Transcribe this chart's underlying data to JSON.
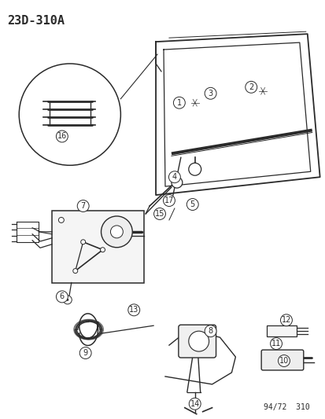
{
  "title": "23D-310A",
  "footer": "94/72  310",
  "bg_color": "#ffffff",
  "line_color": "#2a2a2a",
  "label_color": "#2a2a2a",
  "title_fontsize": 11,
  "footer_fontsize": 7
}
